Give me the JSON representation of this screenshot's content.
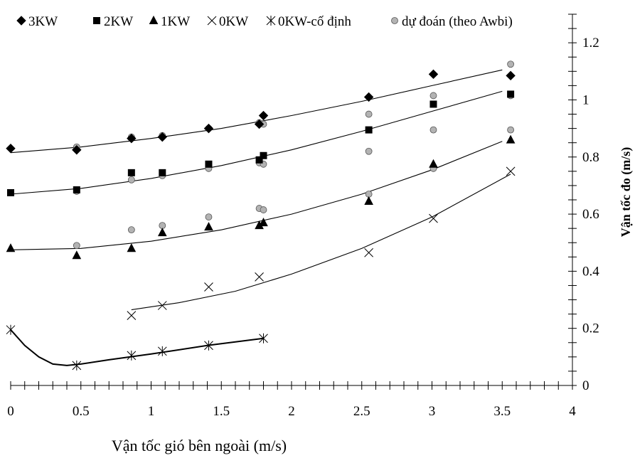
{
  "chart_data": {
    "type": "scatter",
    "title": "",
    "xlabel": "Vận tốc gió bên ngoài (m/s)",
    "ylabel": "Vận tốc đo (m/s)",
    "xlim": [
      0,
      4
    ],
    "ylim": [
      0,
      1.3
    ],
    "x_ticks": [
      "0",
      "0.5",
      "1",
      "1.5",
      "2",
      "2.5",
      "3",
      "3.5",
      "4"
    ],
    "y_ticks": [
      "0",
      "0.2",
      "0.4",
      "0.6",
      "0.8",
      "1",
      "1.2"
    ],
    "y_axis_side": "right",
    "grid": false,
    "legend_position": "top",
    "series": [
      {
        "name": "3KW",
        "marker": "diamond",
        "points": [
          [
            0,
            0.83
          ],
          [
            0.47,
            0.825
          ],
          [
            0.86,
            0.865
          ],
          [
            1.08,
            0.87
          ],
          [
            1.41,
            0.9
          ],
          [
            1.77,
            0.915
          ],
          [
            1.8,
            0.945
          ],
          [
            2.55,
            1.01
          ],
          [
            3.01,
            1.09
          ],
          [
            3.56,
            1.085
          ]
        ],
        "trend": [
          [
            0,
            0.815
          ],
          [
            0.5,
            0.835
          ],
          [
            1,
            0.865
          ],
          [
            1.5,
            0.9
          ],
          [
            2,
            0.945
          ],
          [
            2.5,
            0.995
          ],
          [
            3,
            1.05
          ],
          [
            3.5,
            1.105
          ]
        ]
      },
      {
        "name": "2KW",
        "marker": "square",
        "points": [
          [
            0,
            0.675
          ],
          [
            0.47,
            0.685
          ],
          [
            0.86,
            0.745
          ],
          [
            1.08,
            0.745
          ],
          [
            1.41,
            0.775
          ],
          [
            1.77,
            0.79
          ],
          [
            1.8,
            0.805
          ],
          [
            2.55,
            0.895
          ],
          [
            3.01,
            0.985
          ],
          [
            3.56,
            1.02
          ]
        ],
        "trend": [
          [
            0,
            0.67
          ],
          [
            0.5,
            0.69
          ],
          [
            1,
            0.725
          ],
          [
            1.5,
            0.77
          ],
          [
            2,
            0.825
          ],
          [
            2.5,
            0.89
          ],
          [
            3,
            0.96
          ],
          [
            3.5,
            1.03
          ]
        ]
      },
      {
        "name": "1KW",
        "marker": "triangle",
        "points": [
          [
            0,
            0.48
          ],
          [
            0.47,
            0.455
          ],
          [
            0.86,
            0.48
          ],
          [
            1.08,
            0.535
          ],
          [
            1.41,
            0.555
          ],
          [
            1.77,
            0.56
          ],
          [
            1.8,
            0.57
          ],
          [
            2.55,
            0.645
          ],
          [
            3.01,
            0.775
          ],
          [
            3.56,
            0.86
          ]
        ],
        "trend": [
          [
            0,
            0.475
          ],
          [
            0.5,
            0.48
          ],
          [
            1,
            0.505
          ],
          [
            1.5,
            0.545
          ],
          [
            2,
            0.6
          ],
          [
            2.5,
            0.67
          ],
          [
            3,
            0.755
          ],
          [
            3.5,
            0.855
          ]
        ]
      },
      {
        "name": "0KW",
        "marker": "x",
        "points": [
          [
            0.86,
            0.245
          ],
          [
            1.08,
            0.28
          ],
          [
            1.41,
            0.345
          ],
          [
            1.77,
            0.38
          ],
          [
            2.55,
            0.465
          ],
          [
            3.01,
            0.585
          ],
          [
            3.56,
            0.75
          ]
        ],
        "trend": [
          [
            0.86,
            0.265
          ],
          [
            1.2,
            0.29
          ],
          [
            1.6,
            0.33
          ],
          [
            2,
            0.39
          ],
          [
            2.5,
            0.48
          ],
          [
            3,
            0.59
          ],
          [
            3.56,
            0.74
          ]
        ]
      },
      {
        "name": "0KW-cố định",
        "marker": "asterisk",
        "points": [
          [
            0,
            0.195
          ],
          [
            0.47,
            0.07
          ],
          [
            0.86,
            0.105
          ],
          [
            1.08,
            0.12
          ],
          [
            1.41,
            0.14
          ],
          [
            1.8,
            0.165
          ]
        ],
        "trend": [
          [
            0,
            0.195
          ],
          [
            0.1,
            0.14
          ],
          [
            0.2,
            0.1
          ],
          [
            0.3,
            0.075
          ],
          [
            0.4,
            0.07
          ],
          [
            0.5,
            0.075
          ],
          [
            0.7,
            0.09
          ],
          [
            1,
            0.11
          ],
          [
            1.4,
            0.14
          ],
          [
            1.8,
            0.165
          ]
        ]
      },
      {
        "name": "dự đoán (theo Awbi)",
        "marker": "circle",
        "points": [
          [
            0.47,
            0.835
          ],
          [
            0.86,
            0.87
          ],
          [
            1.08,
            0.875
          ],
          [
            1.41,
            0.9
          ],
          [
            1.77,
            0.92
          ],
          [
            1.8,
            0.915
          ],
          [
            2.55,
            0.95
          ],
          [
            3.01,
            1.015
          ],
          [
            3.56,
            1.125
          ],
          [
            0.47,
            0.68
          ],
          [
            0.86,
            0.72
          ],
          [
            1.08,
            0.735
          ],
          [
            1.41,
            0.76
          ],
          [
            1.77,
            0.78
          ],
          [
            1.8,
            0.775
          ],
          [
            2.55,
            0.82
          ],
          [
            3.01,
            0.895
          ],
          [
            3.56,
            1.015
          ],
          [
            0.47,
            0.49
          ],
          [
            0.86,
            0.545
          ],
          [
            1.08,
            0.56
          ],
          [
            1.41,
            0.59
          ],
          [
            1.77,
            0.62
          ],
          [
            1.8,
            0.615
          ],
          [
            2.55,
            0.67
          ],
          [
            3.01,
            0.76
          ],
          [
            3.56,
            0.895
          ]
        ]
      }
    ]
  }
}
